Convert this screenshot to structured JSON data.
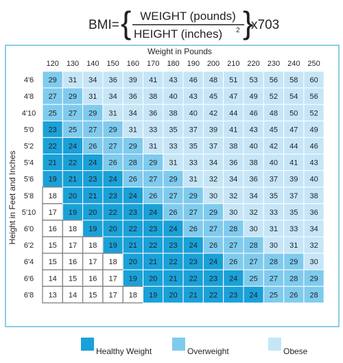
{
  "formula": {
    "lhs": "BMI=",
    "numerator": "WEIGHT (pounds)",
    "denominator_base": "HEIGHT (inches)",
    "denominator_exp": "2",
    "multiplier": "x703"
  },
  "colors": {
    "healthy": "#1aa1d8",
    "overweight": "#7fcbee",
    "obese": "#c6e6f7",
    "underweight": "#ffffff",
    "frame": "#3fa9dd",
    "grid": "#ffffff",
    "text": "#231f20"
  },
  "chart_data": {
    "type": "heatmap",
    "xlabel": "Weight in Pounds",
    "ylabel": "Height in Feet and Inches",
    "x": [
      "120",
      "130",
      "140",
      "150",
      "160",
      "170",
      "180",
      "190",
      "200",
      "210",
      "220",
      "230",
      "240",
      "250"
    ],
    "y": [
      "4'6",
      "4'8",
      "4'10",
      "5'0",
      "5'2",
      "5'4",
      "5'6",
      "5'8",
      "5'10",
      "6'0",
      "6'2",
      "6'4",
      "6'6",
      "6'8"
    ],
    "values": [
      [
        29,
        31,
        34,
        36,
        39,
        41,
        43,
        46,
        48,
        51,
        53,
        56,
        58,
        60
      ],
      [
        27,
        29,
        31,
        34,
        36,
        38,
        40,
        43,
        45,
        47,
        49,
        52,
        54,
        56
      ],
      [
        25,
        27,
        29,
        31,
        34,
        36,
        38,
        40,
        42,
        44,
        46,
        48,
        50,
        52
      ],
      [
        23,
        25,
        27,
        29,
        31,
        33,
        35,
        37,
        39,
        41,
        43,
        45,
        47,
        49
      ],
      [
        22,
        24,
        26,
        27,
        29,
        31,
        33,
        35,
        37,
        38,
        40,
        42,
        44,
        46
      ],
      [
        21,
        22,
        24,
        26,
        28,
        29,
        31,
        33,
        34,
        36,
        38,
        40,
        41,
        43
      ],
      [
        19,
        21,
        23,
        24,
        26,
        27,
        29,
        31,
        32,
        34,
        36,
        37,
        39,
        40
      ],
      [
        18,
        20,
        21,
        23,
        24,
        26,
        27,
        29,
        30,
        32,
        34,
        35,
        37,
        38
      ],
      [
        17,
        19,
        20,
        22,
        23,
        24,
        26,
        27,
        29,
        30,
        32,
        33,
        35,
        36
      ],
      [
        16,
        18,
        19,
        20,
        22,
        23,
        24,
        26,
        27,
        28,
        30,
        31,
        33,
        34
      ],
      [
        15,
        17,
        18,
        19,
        21,
        22,
        23,
        24,
        26,
        27,
        28,
        30,
        31,
        32
      ],
      [
        15,
        16,
        17,
        18,
        20,
        21,
        22,
        23,
        24,
        26,
        27,
        28,
        29,
        30
      ],
      [
        14,
        15,
        16,
        17,
        19,
        20,
        21,
        22,
        23,
        24,
        25,
        27,
        28,
        29
      ],
      [
        13,
        14,
        15,
        17,
        18,
        19,
        20,
        21,
        22,
        23,
        24,
        25,
        26,
        28
      ]
    ],
    "legend": [
      {
        "label": "Healthy Weight",
        "key": "healthy"
      },
      {
        "label": "Overweight",
        "key": "overweight"
      },
      {
        "label": "Obese",
        "key": "obese"
      }
    ],
    "legend_position": "bottom"
  }
}
